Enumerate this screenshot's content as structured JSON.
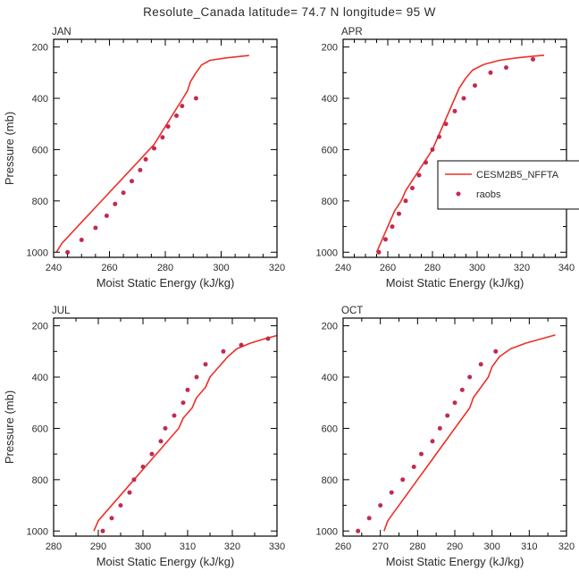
{
  "title": "Resolute_Canada  latitude= 74.7 N longitude= 95 W",
  "colors": {
    "line": "#ee2f28",
    "dots": "#c22b4e",
    "axis": "#000000",
    "text": "#2b2b2b"
  },
  "legend": {
    "line_label": "CESM2B5_NFFTA",
    "dot_label": "raobs"
  },
  "axis_labels": {
    "x": "Moist Static Energy (kJ/kg)",
    "y": "Pressure (mb)"
  },
  "chart_data": [
    {
      "type": "line+scatter",
      "panel": "JAN",
      "xlabel": "Moist Static Energy (kJ/kg)",
      "ylabel": "Pressure (mb)",
      "xlim": [
        240,
        320
      ],
      "xticks": [
        240,
        260,
        280,
        300,
        320
      ],
      "x_minor_step": 5,
      "ylim": [
        170,
        1020
      ],
      "yticks": [
        200,
        400,
        600,
        800,
        1000
      ],
      "y_minor_step": 100,
      "series": [
        {
          "name": "CESM2B5_NFFTA",
          "type": "line",
          "points": [
            [
              241,
              1000
            ],
            [
              243,
              965
            ],
            [
              246,
              930
            ],
            [
              249,
              895
            ],
            [
              252,
              860
            ],
            [
              255,
              825
            ],
            [
              258,
              790
            ],
            [
              261,
              755
            ],
            [
              264,
              720
            ],
            [
              267,
              685
            ],
            [
              270,
              650
            ],
            [
              273,
              615
            ],
            [
              276,
              580
            ],
            [
              278,
              545
            ],
            [
              280,
              510
            ],
            [
              282,
              475
            ],
            [
              284,
              440
            ],
            [
              286,
              405
            ],
            [
              288,
              370
            ],
            [
              289,
              335
            ],
            [
              291,
              300
            ],
            [
              293,
              270
            ],
            [
              296,
              252
            ],
            [
              302,
              242
            ],
            [
              310,
              233
            ]
          ]
        },
        {
          "name": "raobs",
          "type": "scatter",
          "points": [
            [
              245,
              1000
            ],
            [
              250,
              952
            ],
            [
              255,
              905
            ],
            [
              259,
              858
            ],
            [
              262,
              812
            ],
            [
              265,
              768
            ],
            [
              268,
              723
            ],
            [
              271,
              680
            ],
            [
              273,
              638
            ],
            [
              276,
              595
            ],
            [
              279,
              552
            ],
            [
              281,
              510
            ],
            [
              284,
              468
            ],
            [
              286,
              430
            ],
            [
              291,
              400
            ]
          ]
        }
      ]
    },
    {
      "type": "line+scatter",
      "panel": "APR",
      "xlabel": "Moist Static Energy (kJ/kg)",
      "xlim": [
        240,
        340
      ],
      "xticks": [
        240,
        260,
        280,
        300,
        320,
        340
      ],
      "x_minor_step": 5,
      "ylim": [
        170,
        1020
      ],
      "yticks": [
        200,
        400,
        600,
        800,
        1000
      ],
      "y_minor_step": 100,
      "legend": true,
      "series": [
        {
          "name": "CESM2B5_NFFTA",
          "type": "line",
          "points": [
            [
              255,
              1000
            ],
            [
              257,
              960
            ],
            [
              259,
              920
            ],
            [
              261,
              880
            ],
            [
              263,
              840
            ],
            [
              266,
              800
            ],
            [
              268,
              760
            ],
            [
              271,
              720
            ],
            [
              274,
              680
            ],
            [
              277,
              640
            ],
            [
              280,
              600
            ],
            [
              282,
              560
            ],
            [
              284,
              520
            ],
            [
              286,
              480
            ],
            [
              288,
              440
            ],
            [
              290,
              400
            ],
            [
              292,
              360
            ],
            [
              295,
              320
            ],
            [
              298,
              290
            ],
            [
              303,
              268
            ],
            [
              310,
              252
            ],
            [
              318,
              242
            ],
            [
              325,
              236
            ],
            [
              330,
              232
            ]
          ]
        },
        {
          "name": "raobs",
          "type": "scatter",
          "points": [
            [
              256,
              1000
            ],
            [
              259,
              950
            ],
            [
              262,
              900
            ],
            [
              265,
              850
            ],
            [
              268,
              800
            ],
            [
              271,
              750
            ],
            [
              274,
              700
            ],
            [
              277,
              650
            ],
            [
              280,
              600
            ],
            [
              283,
              550
            ],
            [
              286,
              500
            ],
            [
              290,
              450
            ],
            [
              294,
              400
            ],
            [
              299,
              350
            ],
            [
              306,
              300
            ],
            [
              313,
              280
            ],
            [
              325,
              248
            ]
          ]
        }
      ]
    },
    {
      "type": "line+scatter",
      "panel": "JUL",
      "xlabel": "Moist Static Energy (kJ/kg)",
      "ylabel": "Pressure (mb)",
      "xlim": [
        280,
        330
      ],
      "xticks": [
        280,
        290,
        300,
        310,
        320,
        330
      ],
      "x_minor_step": 5,
      "ylim": [
        170,
        1020
      ],
      "yticks": [
        200,
        400,
        600,
        800,
        1000
      ],
      "y_minor_step": 100,
      "series": [
        {
          "name": "CESM2B5_NFFTA",
          "type": "line",
          "points": [
            [
              289,
              1000
            ],
            [
              290,
              960
            ],
            [
              292,
              920
            ],
            [
              294,
              880
            ],
            [
              296,
              840
            ],
            [
              298,
              800
            ],
            [
              300,
              760
            ],
            [
              302,
              720
            ],
            [
              304,
              680
            ],
            [
              306,
              640
            ],
            [
              308,
              600
            ],
            [
              309,
              560
            ],
            [
              311,
              520
            ],
            [
              312,
              480
            ],
            [
              314,
              440
            ],
            [
              315,
              400
            ],
            [
              317,
              360
            ],
            [
              319,
              320
            ],
            [
              321,
              290
            ],
            [
              324,
              268
            ],
            [
              327,
              252
            ],
            [
              330,
              238
            ]
          ]
        },
        {
          "name": "raobs",
          "type": "scatter",
          "points": [
            [
              291,
              1000
            ],
            [
              293,
              950
            ],
            [
              295,
              900
            ],
            [
              297,
              850
            ],
            [
              298,
              800
            ],
            [
              300,
              750
            ],
            [
              302,
              700
            ],
            [
              304,
              650
            ],
            [
              305,
              600
            ],
            [
              307,
              550
            ],
            [
              309,
              500
            ],
            [
              310,
              450
            ],
            [
              312,
              400
            ],
            [
              314,
              350
            ],
            [
              318,
              300
            ],
            [
              322,
              275
            ],
            [
              328,
              250
            ]
          ]
        }
      ]
    },
    {
      "type": "line+scatter",
      "panel": "OCT",
      "xlabel": "Moist Static Energy (kJ/kg)",
      "xlim": [
        260,
        320
      ],
      "xticks": [
        260,
        270,
        280,
        290,
        300,
        310,
        320
      ],
      "x_minor_step": 5,
      "ylim": [
        170,
        1020
      ],
      "yticks": [
        200,
        400,
        600,
        800,
        1000
      ],
      "y_minor_step": 100,
      "series": [
        {
          "name": "CESM2B5_NFFTA",
          "type": "line",
          "points": [
            [
              271,
              1000
            ],
            [
              272,
              960
            ],
            [
              274,
              920
            ],
            [
              276,
              880
            ],
            [
              278,
              840
            ],
            [
              280,
              800
            ],
            [
              282,
              760
            ],
            [
              284,
              720
            ],
            [
              286,
              680
            ],
            [
              288,
              640
            ],
            [
              290,
              600
            ],
            [
              292,
              560
            ],
            [
              294,
              520
            ],
            [
              295,
              480
            ],
            [
              297,
              440
            ],
            [
              299,
              400
            ],
            [
              300,
              360
            ],
            [
              302,
              320
            ],
            [
              305,
              290
            ],
            [
              309,
              268
            ],
            [
              313,
              252
            ],
            [
              317,
              236
            ]
          ]
        },
        {
          "name": "raobs",
          "type": "scatter",
          "points": [
            [
              264,
              1000
            ],
            [
              267,
              950
            ],
            [
              270,
              900
            ],
            [
              273,
              850
            ],
            [
              276,
              800
            ],
            [
              279,
              750
            ],
            [
              281,
              700
            ],
            [
              284,
              650
            ],
            [
              286,
              600
            ],
            [
              288,
              550
            ],
            [
              290,
              500
            ],
            [
              292,
              450
            ],
            [
              294,
              400
            ],
            [
              297,
              350
            ],
            [
              301,
              300
            ]
          ]
        }
      ]
    }
  ]
}
